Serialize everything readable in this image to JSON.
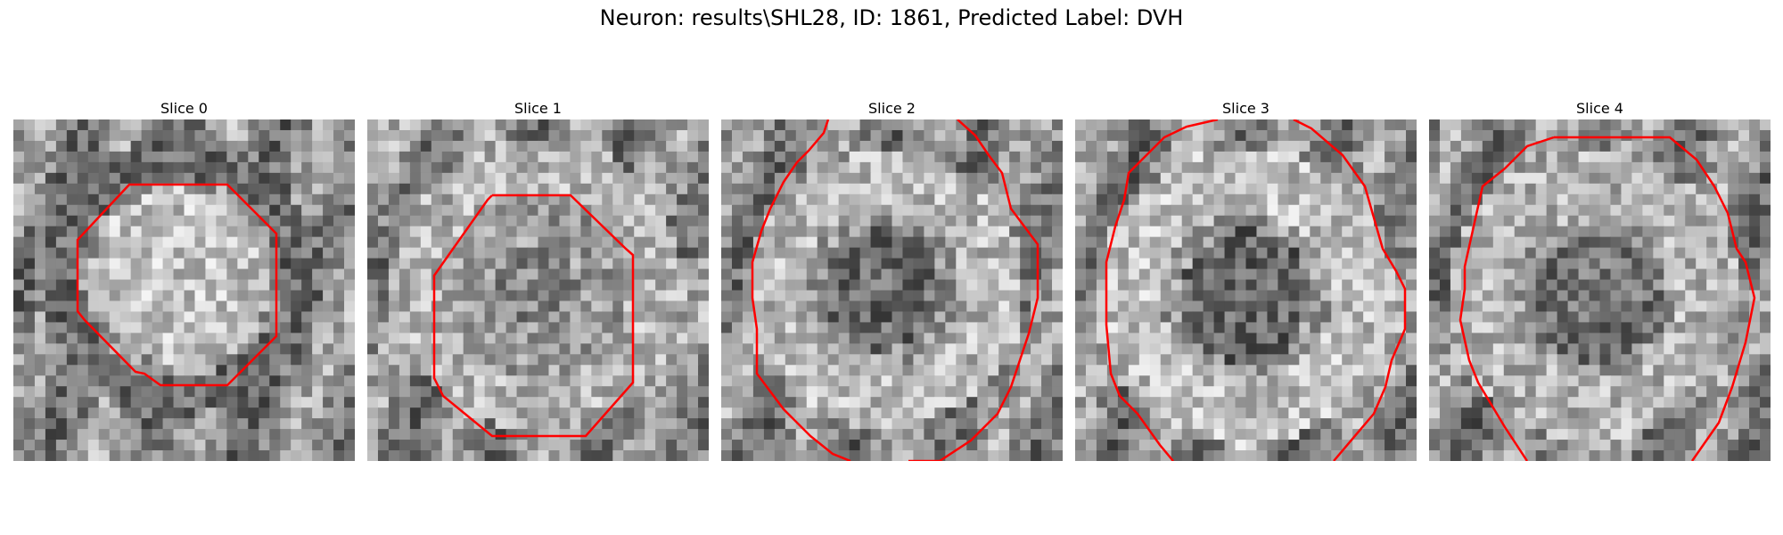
{
  "figure": {
    "title": "Neuron: results\\SHL28, ID: 1861, Predicted Label: DVH"
  },
  "slices": [
    {
      "title": "Slice 0"
    },
    {
      "title": "Slice 1"
    },
    {
      "title": "Slice 2"
    },
    {
      "title": "Slice 3"
    },
    {
      "title": "Slice 4"
    }
  ],
  "colors": {
    "contour": "#ff0000",
    "background": "#ffffff"
  }
}
